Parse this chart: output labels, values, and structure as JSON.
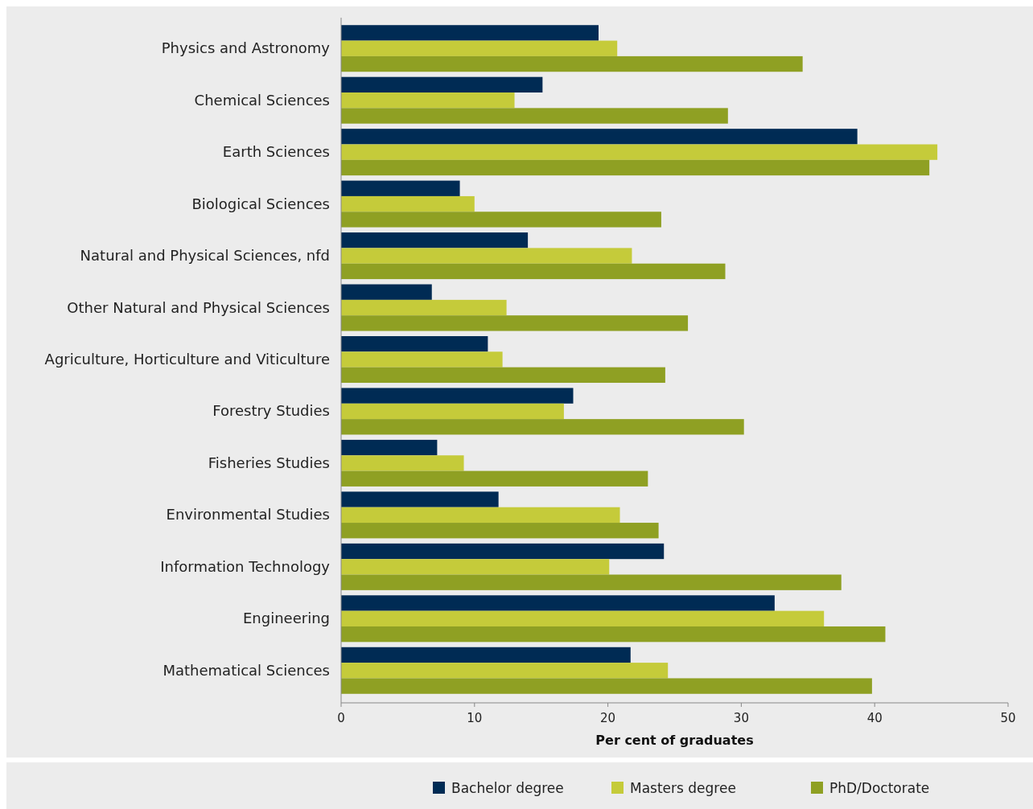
{
  "chart_data": {
    "type": "bar",
    "orientation": "horizontal",
    "xlabel": "Per cent of graduates",
    "categories": [
      "Physics and Astronomy",
      "Chemical Sciences",
      "Earth Sciences",
      "Biological Sciences",
      "Natural and Physical Sciences, nfd",
      "Other Natural and Physical Sciences",
      "Agriculture, Horticulture and Viticulture",
      "Forestry Studies",
      "Fisheries Studies",
      "Environmental Studies",
      "Information Technology",
      "Engineering",
      "Mathematical Sciences"
    ],
    "series": [
      {
        "name": "Bachelor degree",
        "color": "#002b54",
        "values": [
          19.3,
          15.1,
          38.7,
          8.9,
          14.0,
          6.8,
          11.0,
          17.4,
          7.2,
          11.8,
          24.2,
          32.5,
          21.7
        ]
      },
      {
        "name": "Masters degree",
        "color": "#c5cb3a",
        "values": [
          20.7,
          13.0,
          44.7,
          10.0,
          21.8,
          12.4,
          12.1,
          16.7,
          9.2,
          20.9,
          20.1,
          36.2,
          24.5
        ]
      },
      {
        "name": "PhD/Doctorate",
        "color": "#8fa023",
        "values": [
          34.6,
          29.0,
          44.1,
          24.0,
          28.8,
          26.0,
          24.3,
          30.2,
          23.0,
          23.8,
          37.5,
          40.8,
          39.8
        ]
      }
    ],
    "xlim": [
      0,
      50
    ],
    "xticks": [
      0,
      10,
      20,
      30,
      40,
      50
    ],
    "grid": false,
    "legend": "bottom"
  }
}
